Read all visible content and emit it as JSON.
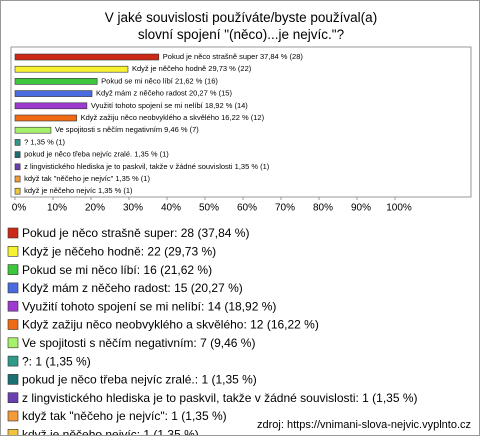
{
  "chart_data": {
    "type": "hbar",
    "title": "V jaké souvislosti používáte/byste používal(a) slovní spojení \"(něco)...je nejvíc.\"?",
    "categories": [
      "Pokud je něco strašně super",
      "Když je něčeho hodně",
      "Pokud se mi něco líbí",
      "Když mám z něčeho radost",
      "Využití tohoto spojení se mi nelíbí",
      "Když zažiju něco neobvyklého a skvělého",
      "Ve spojitosti s něčím negativním",
      "?",
      "pokud je něco třeba nejvíc zralé.",
      "z lingvistického hlediska je to paskvil, takže v žádné souvislosti",
      "když tak \"něčeho je nejvíc\"",
      "když je něčeho nejvíc"
    ],
    "values": [
      37.84,
      29.73,
      21.62,
      20.27,
      18.92,
      16.22,
      9.46,
      1.35,
      1.35,
      1.35,
      1.35,
      1.35
    ],
    "value_labels": [
      "37,84 % (28)",
      "29,73 % (22)",
      "21,62 % (16)",
      "20,27 % (15)",
      "18,92 % (14)",
      "16,22 % (12)",
      "9,46 % (7)",
      "1,35 % (1)",
      "1,35 % (1)",
      "1,35 % (1)",
      "1,35 % (1)",
      "1,35 % (1)"
    ],
    "colors": [
      "#cc2a16",
      "#f6f232",
      "#3cc63c",
      "#4a6be0",
      "#9d3ad0",
      "#f06a12",
      "#a6f06a",
      "#2f9a8a",
      "#1a6f70",
      "#6a3fb0",
      "#f39a3a",
      "#f2c43a"
    ],
    "legend": [
      "Pokud je něco strašně super: 28 (37,84 %)",
      "Když je něčeho hodně: 22 (29,73 %)",
      "Pokud se mi něco líbí: 16 (21,62 %)",
      "Když mám z něčeho radost: 15 (20,27 %)",
      "Využití tohoto spojení se mi nelíbí: 14 (18,92 %)",
      "Když zažiju něco neobvyklého a skvělého: 12 (16,22 %)",
      "Ve spojitosti s něčím negativním: 7 (9,46 %)",
      "?: 1 (1,35 %)",
      "pokud je něco třeba nejvíc zralé.: 1 (1,35 %)",
      "z lingvistického hlediska je to paskvil, takže v žádné souvislosti: 1 (1,35 %)",
      "když tak \"něčeho je nejvíc\": 1 (1,35 %)",
      "když je něčeho nejvíc: 1 (1,35 %)"
    ],
    "xlim": [
      0,
      100
    ],
    "xticks": [
      {
        "value": 0,
        "label": "0%"
      },
      {
        "value": 10,
        "label": "10%"
      },
      {
        "value": 20,
        "label": "20%"
      },
      {
        "value": 30,
        "label": "30%"
      },
      {
        "value": 40,
        "label": "40%"
      },
      {
        "value": 50,
        "label": "50%"
      },
      {
        "value": 60,
        "label": "60%"
      },
      {
        "value": 70,
        "label": "70%"
      },
      {
        "value": 80,
        "label": "80%"
      },
      {
        "value": 90,
        "label": "90%"
      },
      {
        "value": 100,
        "label": "100%"
      }
    ],
    "grid": false,
    "source": "zdroj: https://vnimani-slova-nejvic.vyplnto.cz"
  }
}
